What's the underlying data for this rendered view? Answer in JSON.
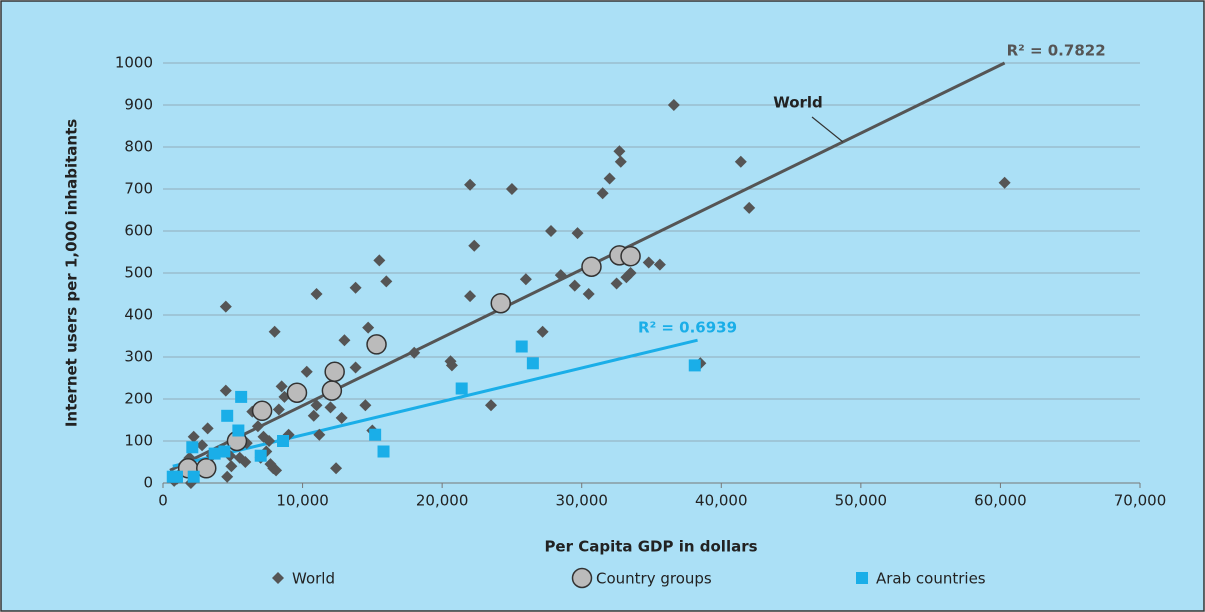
{
  "chart_data": {
    "type": "scatter",
    "xlabel": "Per Capita GDP in dollars",
    "ylabel": "Internet users per 1,000 inhabitants",
    "xlim": [
      0,
      70000
    ],
    "ylim": [
      0,
      1000
    ],
    "xticks": [
      0,
      {
        "value": 10000,
        "label": "10,000"
      },
      {
        "value": 20000,
        "label": "20,000"
      },
      {
        "value": 30000,
        "label": "30,000"
      },
      {
        "value": 40000,
        "label": "40,000"
      },
      {
        "value": 50000,
        "label": "50,000"
      },
      {
        "value": 60000,
        "label": "60,000"
      },
      {
        "value": 70000,
        "label": "70,000"
      }
    ],
    "yticks": [
      0,
      100,
      200,
      300,
      400,
      500,
      600,
      700,
      800,
      900,
      1000
    ],
    "grid": true,
    "legend": "bottom",
    "series": [
      {
        "name": "World",
        "color": "#555555",
        "marker": "diamond",
        "x": [
          4500,
          8000,
          11000,
          13800,
          15500,
          16000,
          22000,
          22300,
          22000,
          25000,
          27800,
          29700,
          31500,
          32000,
          32700,
          32800,
          36600,
          41400,
          42000,
          60300,
          38500,
          35600,
          34800,
          33500,
          33200,
          32500,
          30500,
          29500,
          28500,
          27200,
          26000,
          23500,
          20600,
          20700,
          18000,
          14700,
          13000,
          14500,
          15000,
          12400,
          12800,
          12000,
          11000,
          11200,
          10800,
          10300,
          13800,
          8500,
          8700,
          8300,
          9000,
          8100,
          7900,
          7400,
          7700,
          7200,
          6800,
          6400,
          5900,
          5500,
          4900,
          4600,
          4500,
          4800,
          5000,
          3200,
          2800,
          2500,
          2200,
          1900,
          1500,
          1300,
          1000,
          800,
          2000,
          3500,
          4200,
          6000,
          7000,
          7600
        ],
        "values": [
          420,
          360,
          450,
          465,
          530,
          480,
          710,
          565,
          445,
          700,
          600,
          595,
          690,
          725,
          790,
          765,
          900,
          765,
          655,
          715,
          285,
          520,
          525,
          500,
          490,
          475,
          450,
          470,
          495,
          360,
          485,
          185,
          290,
          280,
          310,
          370,
          340,
          185,
          125,
          35,
          155,
          180,
          185,
          115,
          160,
          265,
          275,
          230,
          205,
          175,
          115,
          30,
          35,
          75,
          45,
          110,
          135,
          170,
          50,
          60,
          40,
          15,
          220,
          65,
          100,
          130,
          90,
          30,
          110,
          60,
          45,
          25,
          10,
          5,
          0,
          65,
          75,
          95,
          60,
          100
        ]
      },
      {
        "name": "Country groups",
        "color": "#bbbbbb",
        "marker": "circle",
        "x": [
          1800,
          3100,
          5300,
          7100,
          9600,
          12100,
          12300,
          15300,
          24200,
          30700,
          32700,
          33500
        ],
        "values": [
          35,
          35,
          100,
          172,
          215,
          220,
          265,
          330,
          428,
          515,
          542,
          540
        ]
      },
      {
        "name": "Arab countries",
        "color": "#1aaee8",
        "marker": "square",
        "x": [
          700,
          1000,
          2100,
          2200,
          3700,
          4400,
          4600,
          5400,
          5600,
          7000,
          8600,
          15200,
          15800,
          21400,
          25700,
          26500,
          38100
        ],
        "values": [
          15,
          15,
          85,
          15,
          70,
          75,
          160,
          125,
          205,
          65,
          100,
          115,
          75,
          225,
          325,
          285,
          280
        ]
      }
    ],
    "trendlines": [
      {
        "color": "#555555",
        "x": [
          500,
          60300
        ],
        "values": [
          30,
          1000
        ],
        "label": "R² = 0.7822"
      },
      {
        "color": "#1aaee8",
        "x": [
          700,
          38300
        ],
        "values": [
          40,
          340
        ],
        "label": "R² = 0.6939"
      }
    ],
    "annotation": "World"
  }
}
